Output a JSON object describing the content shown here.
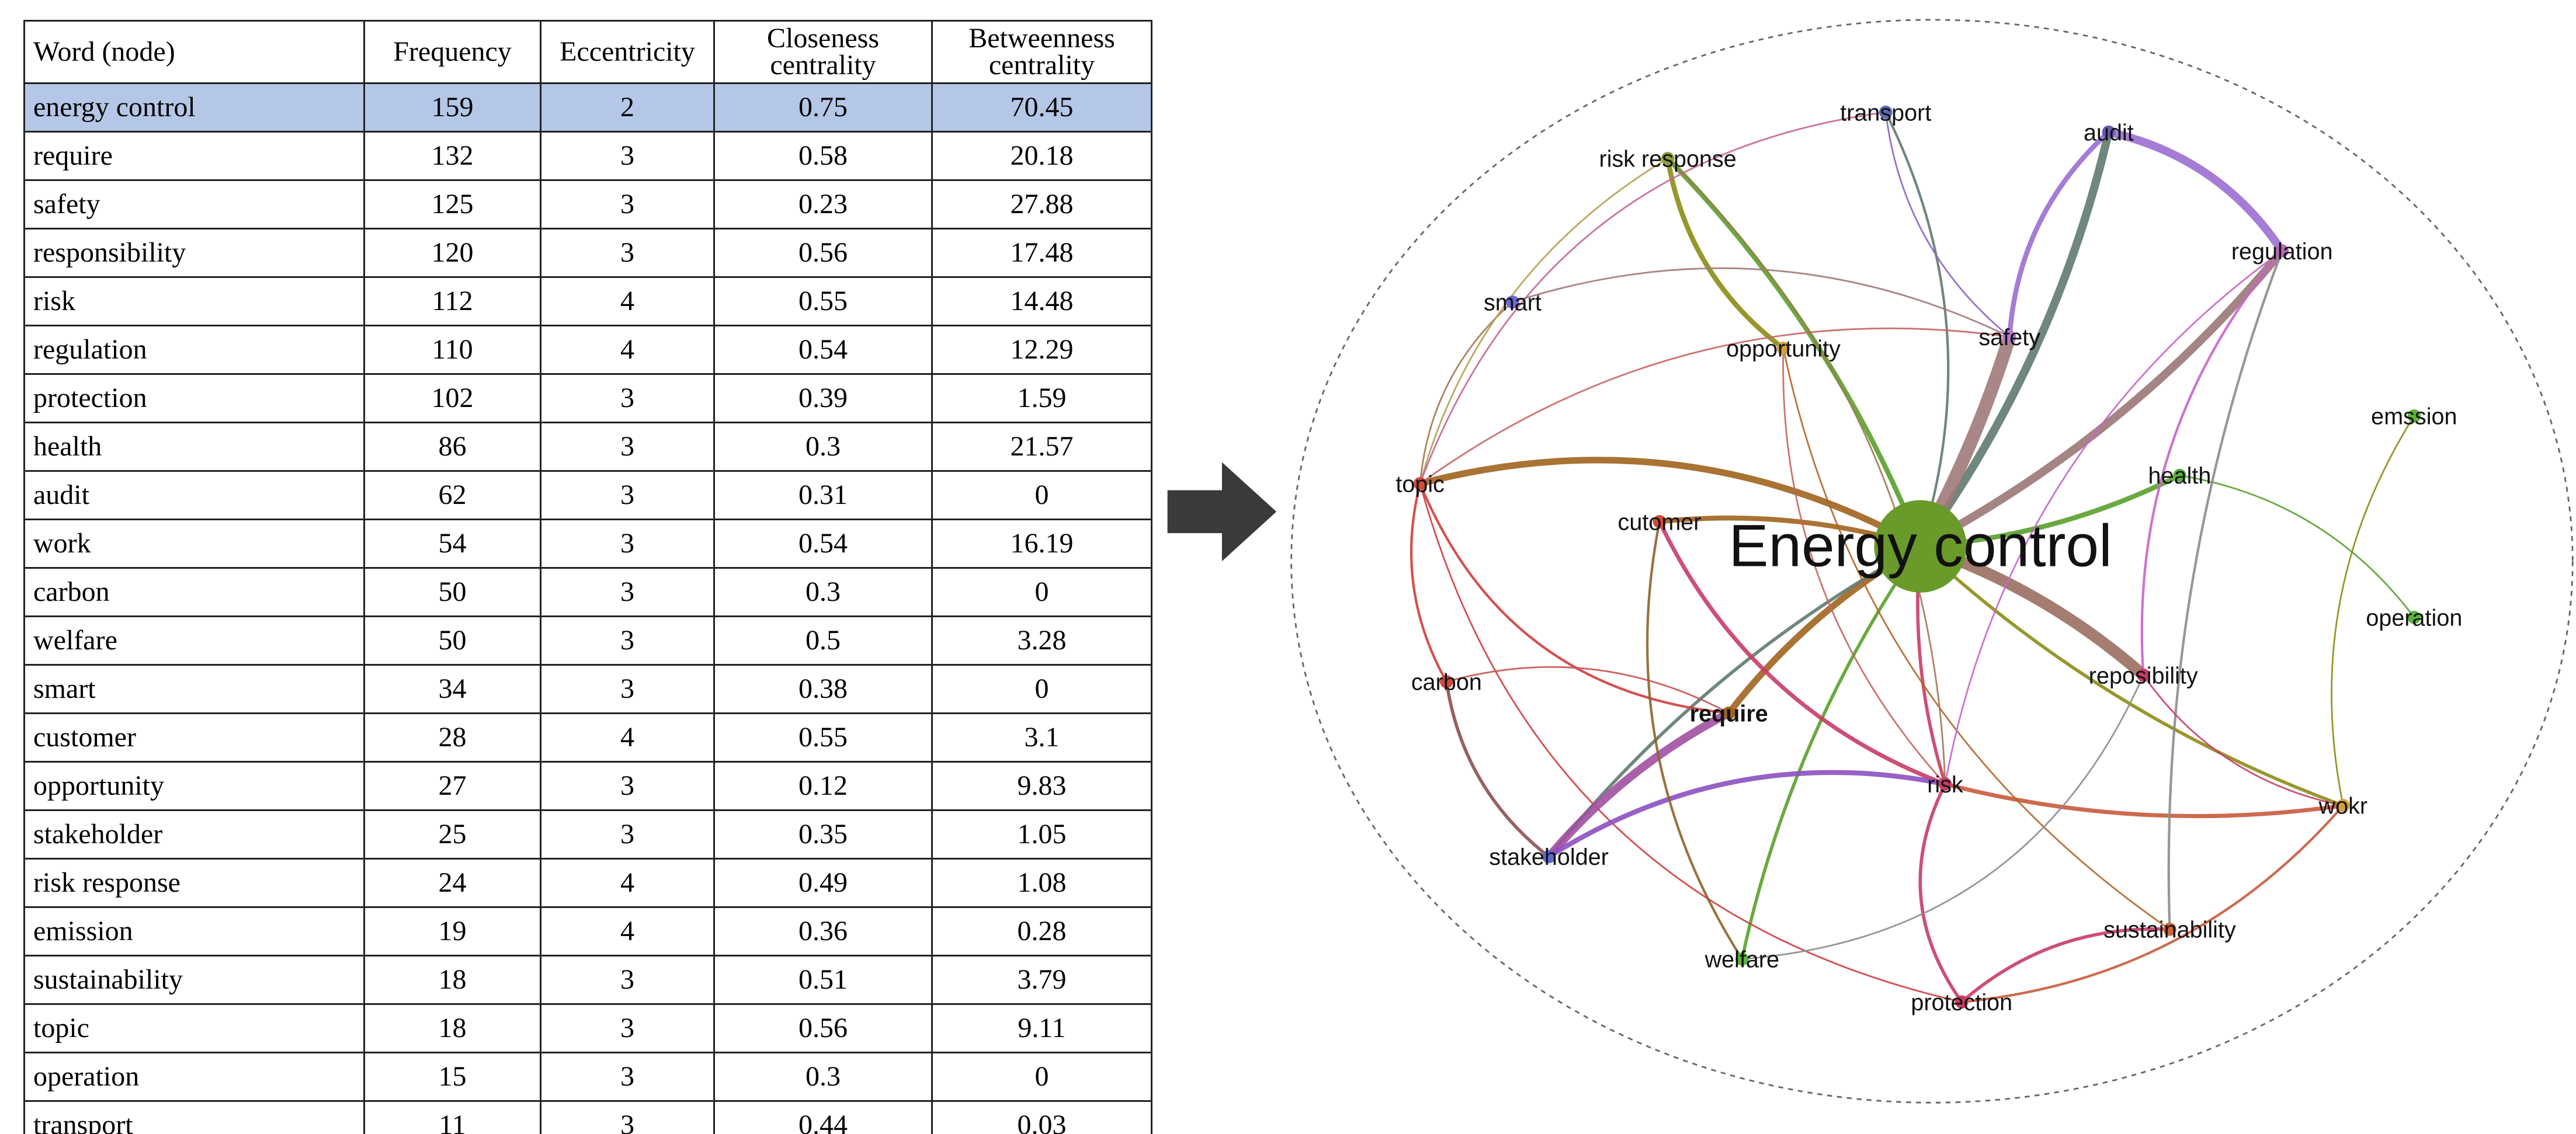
{
  "table": {
    "headers": [
      "Word (node)",
      "Frequency",
      "Eccentricity",
      "Closeness centrality",
      "Betweenness centrality"
    ],
    "rows": [
      [
        "energy control",
        159,
        2,
        0.75,
        70.45
      ],
      [
        "require",
        132,
        3,
        0.58,
        20.18
      ],
      [
        "safety",
        125,
        3,
        0.23,
        27.88
      ],
      [
        "responsibility",
        120,
        3,
        0.56,
        17.48
      ],
      [
        "risk",
        112,
        4,
        0.55,
        14.48
      ],
      [
        "regulation",
        110,
        4,
        0.54,
        12.29
      ],
      [
        "protection",
        102,
        3,
        0.39,
        1.59
      ],
      [
        "health",
        86,
        3,
        0.3,
        21.57
      ],
      [
        "audit",
        62,
        3,
        0.31,
        0
      ],
      [
        "work",
        54,
        3,
        0.54,
        16.19
      ],
      [
        "carbon",
        50,
        3,
        0.3,
        0
      ],
      [
        "welfare",
        50,
        3,
        0.5,
        3.28
      ],
      [
        "smart",
        34,
        3,
        0.38,
        0
      ],
      [
        "customer",
        28,
        4,
        0.55,
        3.1
      ],
      [
        "opportunity",
        27,
        3,
        0.12,
        9.83
      ],
      [
        "stakeholder",
        25,
        3,
        0.35,
        1.05
      ],
      [
        "risk response",
        24,
        4,
        0.49,
        1.08
      ],
      [
        "emission",
        19,
        4,
        0.36,
        0.28
      ],
      [
        "sustainability",
        18,
        3,
        0.51,
        3.79
      ],
      [
        "topic",
        18,
        3,
        0.56,
        9.11
      ],
      [
        "operation",
        15,
        3,
        0.3,
        0
      ],
      [
        "transport",
        11,
        3,
        0.44,
        0.03
      ]
    ]
  },
  "nodes": [
    {
      "label": "transport"
    },
    {
      "label": "audit"
    },
    {
      "label": "risk response"
    },
    {
      "label": "regulation"
    },
    {
      "label": "smart"
    },
    {
      "label": "opportunity"
    },
    {
      "label": "safety"
    },
    {
      "label": "emssion"
    },
    {
      "label": "health"
    },
    {
      "label": "topic"
    },
    {
      "label": "cutomer"
    },
    {
      "label": "Energy control"
    },
    {
      "label": "operation"
    },
    {
      "label": "carbon"
    },
    {
      "label": "reposibility"
    },
    {
      "label": "require"
    },
    {
      "label": "risk"
    },
    {
      "label": "wokr"
    },
    {
      "label": "stakeholder"
    },
    {
      "label": "sustainability"
    },
    {
      "label": "welfare"
    },
    {
      "label": "protection"
    }
  ]
}
